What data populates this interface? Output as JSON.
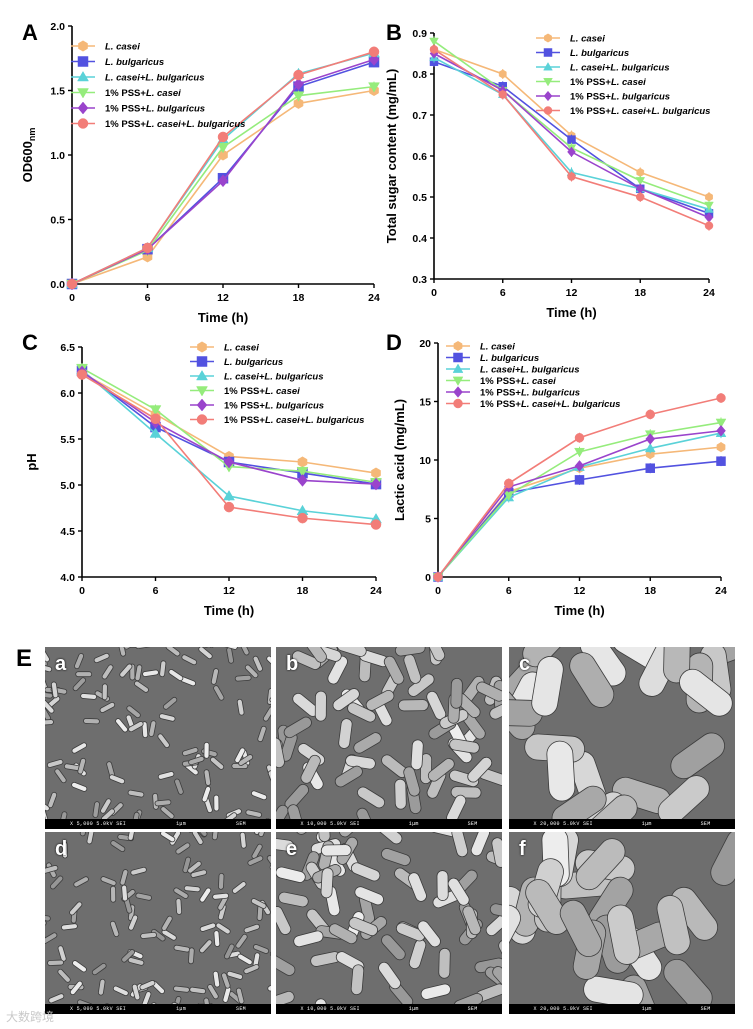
{
  "chart_data": [
    {
      "panel": "A",
      "type": "line",
      "x": [
        0,
        6,
        12,
        18,
        24
      ],
      "xlabel": "Time (h)",
      "ylabel": "OD600nm",
      "ylabel_main": "OD600",
      "ylabel_sub": "nm",
      "ylim": [
        0.0,
        2.0
      ],
      "xticks": [
        0,
        6,
        12,
        18,
        24
      ],
      "yticks": [
        "0.0",
        "0.5",
        "1.0",
        "1.5",
        "2.0"
      ],
      "legend_position": "top-left",
      "series": [
        {
          "name": "L. casei",
          "values": [
            0.0,
            0.21,
            1.0,
            1.4,
            1.5
          ]
        },
        {
          "name": "L. bulgaricus",
          "values": [
            0.0,
            0.27,
            0.82,
            1.53,
            1.72
          ]
        },
        {
          "name": "L. casei+L. bulgaricus",
          "values": [
            0.0,
            0.28,
            1.12,
            1.63,
            1.79
          ]
        },
        {
          "name": "1% PSS+L. casei",
          "values": [
            0.0,
            0.26,
            1.06,
            1.46,
            1.53
          ]
        },
        {
          "name": "1% PSS+L. bulgaricus",
          "values": [
            0.0,
            0.27,
            0.8,
            1.55,
            1.74
          ]
        },
        {
          "name": "1% PSS+L. casei+L. bulgaricus",
          "values": [
            0.0,
            0.28,
            1.14,
            1.62,
            1.8
          ]
        }
      ]
    },
    {
      "panel": "B",
      "type": "line",
      "x": [
        0,
        6,
        12,
        18,
        24
      ],
      "xlabel": "Time (h)",
      "ylabel": "Total sugar content (mg/mL)",
      "ylim": [
        0.3,
        0.9
      ],
      "xticks": [
        0,
        6,
        12,
        18,
        24
      ],
      "yticks": [
        "0.3",
        "0.4",
        "0.5",
        "0.6",
        "0.7",
        "0.8",
        "0.9"
      ],
      "legend_position": "top-right",
      "series": [
        {
          "name": "L. casei",
          "values": [
            0.86,
            0.8,
            0.65,
            0.56,
            0.5
          ]
        },
        {
          "name": "L. bulgaricus",
          "values": [
            0.83,
            0.77,
            0.64,
            0.52,
            0.46
          ]
        },
        {
          "name": "L. casei+L. bulgaricus",
          "values": [
            0.84,
            0.75,
            0.56,
            0.52,
            0.47
          ]
        },
        {
          "name": "1% PSS+L. casei",
          "values": [
            0.88,
            0.76,
            0.62,
            0.54,
            0.48
          ]
        },
        {
          "name": "1% PSS+L. bulgaricus",
          "values": [
            0.85,
            0.76,
            0.61,
            0.52,
            0.45
          ]
        },
        {
          "name": "1% PSS+L. casei+L. bulgaricus",
          "values": [
            0.86,
            0.75,
            0.55,
            0.5,
            0.43
          ]
        }
      ]
    },
    {
      "panel": "C",
      "type": "line",
      "x": [
        0,
        6,
        12,
        18,
        24
      ],
      "xlabel": "Time (h)",
      "ylabel": "pH",
      "ylim": [
        4.0,
        6.5
      ],
      "xticks": [
        0,
        6,
        12,
        18,
        24
      ],
      "yticks": [
        "4.0",
        "4.5",
        "5.0",
        "5.5",
        "6.0",
        "6.5"
      ],
      "legend_position": "top-right",
      "series": [
        {
          "name": "L. casei",
          "values": [
            6.22,
            5.77,
            5.31,
            5.25,
            5.13
          ]
        },
        {
          "name": "L. bulgaricus",
          "values": [
            6.24,
            5.63,
            5.25,
            5.13,
            5.01
          ]
        },
        {
          "name": "L. casei+L. bulgaricus",
          "values": [
            6.25,
            5.56,
            4.88,
            4.72,
            4.63
          ]
        },
        {
          "name": "1% PSS+L. casei",
          "values": [
            6.27,
            5.82,
            5.2,
            5.15,
            5.03
          ]
        },
        {
          "name": "1% PSS+L. bulgaricus",
          "values": [
            6.23,
            5.68,
            5.25,
            5.05,
            5.01
          ]
        },
        {
          "name": "1% PSS+L. casei+L. bulgaricus",
          "values": [
            6.2,
            5.72,
            4.76,
            4.64,
            4.57
          ]
        }
      ]
    },
    {
      "panel": "D",
      "type": "line",
      "x": [
        0,
        6,
        12,
        18,
        24
      ],
      "xlabel": "Time (h)",
      "ylabel": "Lactic acid (mg/mL)",
      "ylim": [
        0,
        20
      ],
      "xticks": [
        0,
        6,
        12,
        18,
        24
      ],
      "yticks": [
        "0",
        "5",
        "10",
        "15",
        "20"
      ],
      "legend_position": "top-left",
      "series": [
        {
          "name": "L. casei",
          "values": [
            0,
            7.3,
            9.3,
            10.5,
            11.1
          ]
        },
        {
          "name": "L. bulgaricus",
          "values": [
            0,
            7.2,
            8.3,
            9.3,
            9.9
          ]
        },
        {
          "name": "L. casei+L. bulgaricus",
          "values": [
            0,
            6.8,
            9.4,
            11.0,
            12.3
          ]
        },
        {
          "name": "1% PSS+L. casei",
          "values": [
            0,
            7.0,
            10.7,
            12.2,
            13.2
          ]
        },
        {
          "name": "1% PSS+L. bulgaricus",
          "values": [
            0,
            7.7,
            9.5,
            11.8,
            12.5
          ]
        },
        {
          "name": "1% PSS+L. casei+L. bulgaricus",
          "values": [
            0,
            8.0,
            11.9,
            13.9,
            15.3
          ]
        }
      ]
    }
  ],
  "legend_parts": [
    {
      "prefix": "",
      "species": "L. casei"
    },
    {
      "prefix": "",
      "species": "L. bulgaricus"
    },
    {
      "prefix": "",
      "species": "L. casei+L. bulgaricus"
    },
    {
      "prefix": "1% PSS+",
      "species": "L. casei"
    },
    {
      "prefix": "1% PSS+",
      "species": "L. bulgaricus"
    },
    {
      "prefix": "1% PSS+",
      "species": "L. casei+L. bulgaricus"
    }
  ],
  "series_colors": [
    "#f5b878",
    "#5252e0",
    "#5ad2d8",
    "#95ec7c",
    "#9a44cc",
    "#f27d78"
  ],
  "series_markers": [
    "hexagon",
    "square",
    "triangle-up",
    "triangle-down",
    "diamond",
    "circle"
  ],
  "sem": {
    "panel_letter": "E",
    "images": [
      {
        "letter": "a",
        "caption": "X 5,000   5.0kV  SEI",
        "scale": "1μm",
        "lab": "SEM"
      },
      {
        "letter": "b",
        "caption": "X 10,000  5.0kV  SEI",
        "scale": "1μm",
        "lab": "SEM"
      },
      {
        "letter": "c",
        "caption": "X 20,000  5.0kV  SEI",
        "scale": "1μm",
        "lab": "SEM"
      },
      {
        "letter": "d",
        "caption": "X 5,000   5.0kV  SEI",
        "scale": "1μm",
        "lab": "SEM"
      },
      {
        "letter": "e",
        "caption": "X 10,000  5.0kV  SEI",
        "scale": "1μm",
        "lab": "SEM"
      },
      {
        "letter": "f",
        "caption": "X 20,000  5.0kV  SEI",
        "scale": "1μm",
        "lab": "SEM"
      }
    ]
  },
  "watermark": "大数跨境"
}
